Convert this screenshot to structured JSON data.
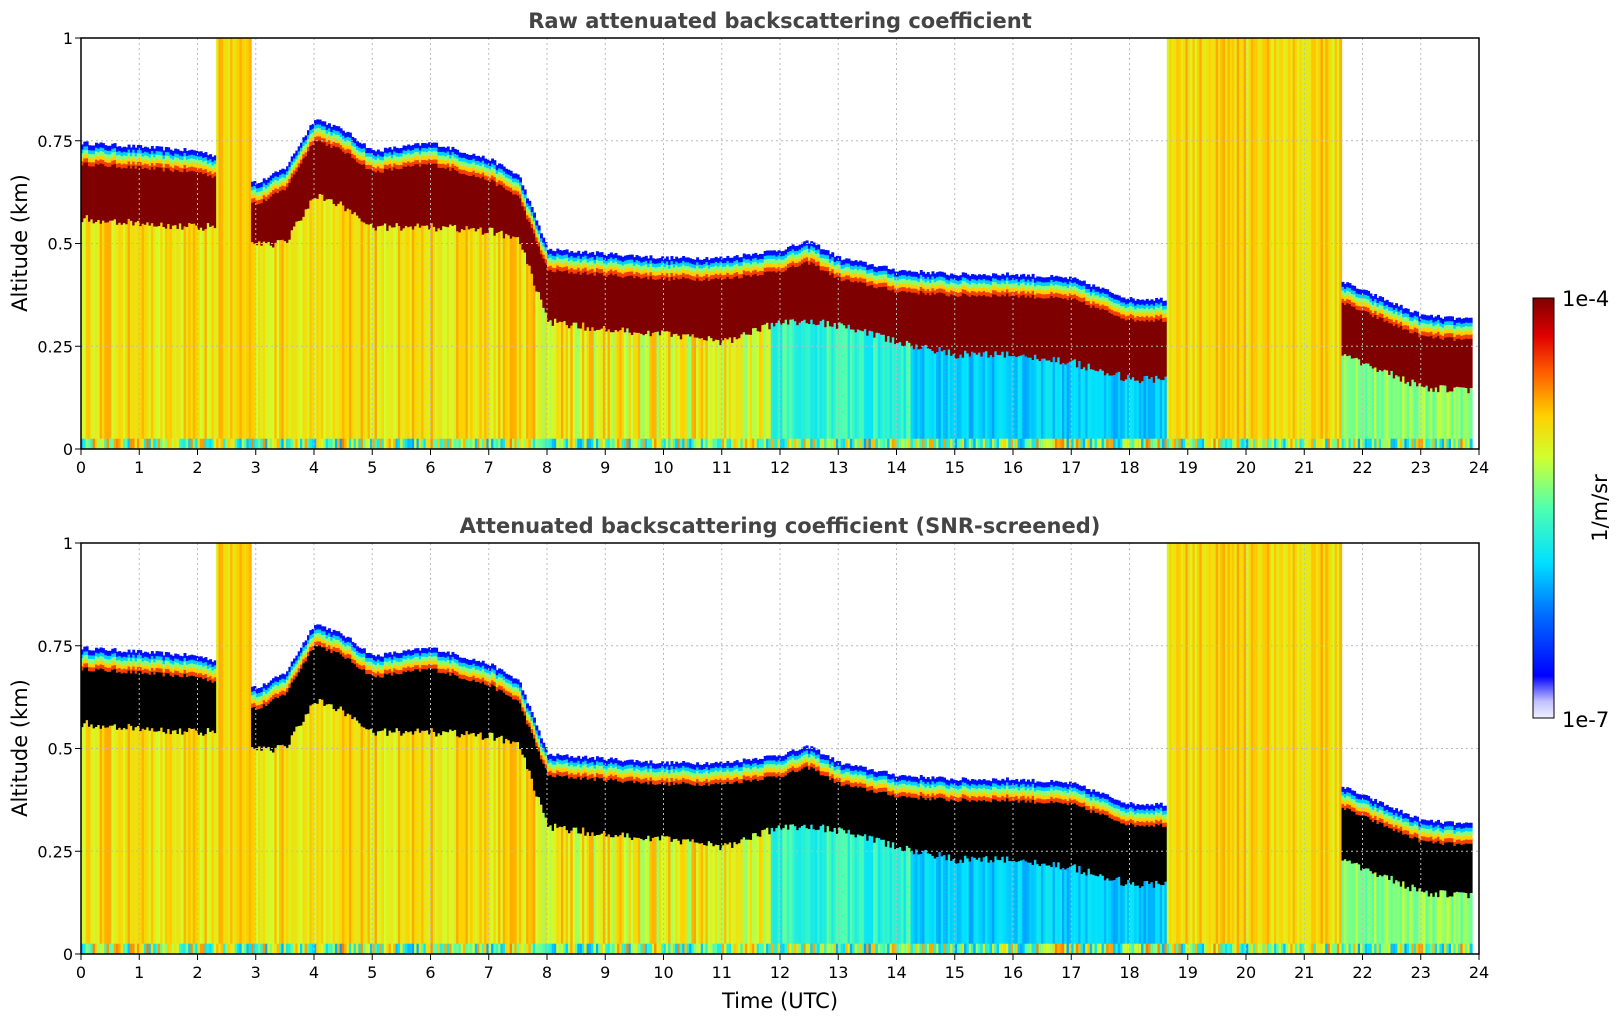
{
  "chart_data": [
    {
      "type": "heatmap",
      "title": "Raw attenuated backscattering coefficient",
      "xlabel": "",
      "ylabel": "Altitude (km)",
      "xlim": [
        0,
        24
      ],
      "ylim": [
        0,
        1
      ],
      "x_ticks": [
        "0",
        "1",
        "2",
        "3",
        "4",
        "5",
        "6",
        "7",
        "8",
        "9",
        "10",
        "11",
        "12",
        "13",
        "14",
        "15",
        "16",
        "17",
        "18",
        "19",
        "20",
        "21",
        "22",
        "23",
        "24"
      ],
      "y_ticks": [
        "0",
        "0.25",
        "0.5",
        "0.75",
        "1"
      ],
      "grid": true,
      "layer_top_km": {
        "time_utc": [
          0,
          1,
          2,
          2.5,
          3,
          3.5,
          4,
          4.5,
          5,
          6,
          7,
          7.5,
          8,
          9,
          10,
          11,
          12,
          12.5,
          13,
          14,
          15,
          16,
          17,
          18,
          18.6,
          21.5,
          22,
          23,
          23.8
        ],
        "altitude_km": [
          0.74,
          0.73,
          0.72,
          0.7,
          0.64,
          0.68,
          0.8,
          0.77,
          0.72,
          0.74,
          0.7,
          0.66,
          0.48,
          0.47,
          0.46,
          0.46,
          0.48,
          0.5,
          0.46,
          0.43,
          0.42,
          0.42,
          0.41,
          0.36,
          0.36,
          0.41,
          0.38,
          0.32,
          0.31
        ]
      },
      "layer_base_km": {
        "time_utc": [
          0,
          1,
          2,
          2.5,
          3,
          3.5,
          4,
          4.5,
          5,
          6,
          7,
          7.5,
          8,
          9,
          10,
          11,
          12,
          12.5,
          13,
          14,
          15,
          16,
          17,
          18,
          18.6,
          21.5,
          22,
          23,
          23.8
        ],
        "altitude_km": [
          0.56,
          0.55,
          0.54,
          0.54,
          0.5,
          0.5,
          0.62,
          0.59,
          0.54,
          0.54,
          0.53,
          0.51,
          0.31,
          0.29,
          0.28,
          0.26,
          0.31,
          0.31,
          0.3,
          0.26,
          0.23,
          0.23,
          0.21,
          0.17,
          0.17,
          0.23,
          0.21,
          0.15,
          0.14
        ]
      },
      "precipitation_hours_utc": [
        [
          2.3,
          2.9
        ],
        [
          18.6,
          21.6
        ]
      ]
    },
    {
      "type": "heatmap",
      "title": "Attenuated backscattering coefficient (SNR-screened)",
      "xlabel": "Time (UTC)",
      "ylabel": "Altitude (km)",
      "xlim": [
        0,
        24
      ],
      "ylim": [
        0,
        1
      ],
      "x_ticks": [
        "0",
        "1",
        "2",
        "3",
        "4",
        "5",
        "6",
        "7",
        "8",
        "9",
        "10",
        "11",
        "12",
        "13",
        "14",
        "15",
        "16",
        "17",
        "18",
        "19",
        "20",
        "21",
        "22",
        "23",
        "24"
      ],
      "y_ticks": [
        "0",
        "0.25",
        "0.5",
        "0.75",
        "1"
      ],
      "grid": true,
      "saturated_color": "#000000"
    }
  ],
  "colorbar": {
    "label": "1/m/sr",
    "max_label": "1e-4",
    "min_label": "1e-7",
    "scale": "log",
    "colormap": "jet"
  },
  "colors": {
    "background": "#ffffff",
    "title": "#444444",
    "grid": "#bbbbbb",
    "cloud_core": "#7f0000"
  }
}
